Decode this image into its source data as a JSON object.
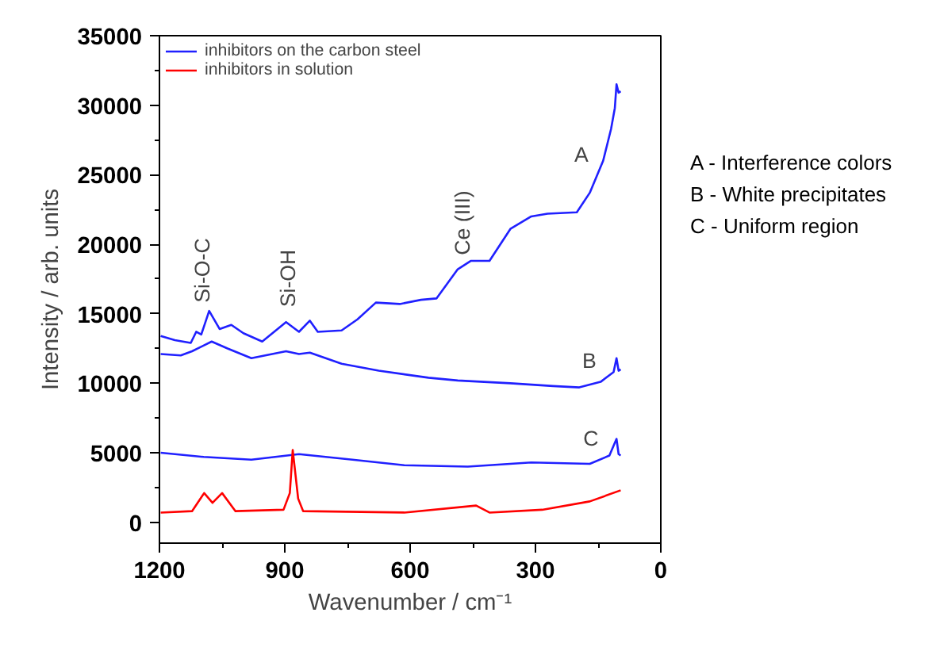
{
  "chart_data": {
    "type": "line",
    "xlabel": "Wavenumber / cm⁻¹",
    "ylabel": "Intensity / arb. units",
    "xlim": [
      1200,
      0
    ],
    "xticks": [
      1200,
      900,
      600,
      300,
      0
    ],
    "ylim": [
      -1500,
      35000
    ],
    "yticks": [
      0,
      5000,
      10000,
      15000,
      20000,
      25000,
      30000,
      35000
    ],
    "grid": false,
    "legend": "top left",
    "marker": "none",
    "line_style": "solid",
    "series": [
      {
        "name": "inhibitors on the carbon steel",
        "color": "#2020ff",
        "x": [
          1197,
          1163,
          1125,
          1112,
          1100,
          1081,
          1056,
          1028,
          999,
          954,
          897,
          866,
          840,
          821,
          764,
          726,
          682,
          625,
          574,
          537,
          486,
          455,
          410,
          360,
          310,
          271,
          201,
          170,
          138,
          119,
          110,
          106,
          101,
          96
        ],
        "values": [
          13400,
          13100,
          12900,
          13700,
          13500,
          15200,
          13900,
          14200,
          13600,
          13000,
          14400,
          13700,
          14500,
          13700,
          13800,
          14600,
          15800,
          15700,
          16000,
          16100,
          18200,
          18800,
          18800,
          21100,
          22000,
          22200,
          22300,
          23700,
          26000,
          28300,
          29800,
          31500,
          30900,
          31000
        ]
      },
      {
        "color": "#2020ff",
        "x": [
          1197,
          1149,
          1122,
          1075,
          1037,
          980,
          897,
          866,
          840,
          764,
          675,
          556,
          486,
          360,
          258,
          195,
          144,
          113,
          106,
          101,
          96
        ],
        "values": [
          12100,
          12000,
          12300,
          13000,
          12500,
          11800,
          12300,
          12100,
          12200,
          11400,
          10900,
          10400,
          10200,
          10000,
          9800,
          9700,
          10100,
          10800,
          11800,
          10900,
          11000
        ]
      },
      {
        "color": "#2020ff",
        "x": [
          1197,
          1094,
          980,
          866,
          738,
          614,
          462,
          310,
          170,
          123,
          106,
          101,
          96
        ],
        "values": [
          5000,
          4700,
          4500,
          4900,
          4500,
          4100,
          4000,
          4300,
          4200,
          4800,
          6000,
          4900,
          4800
        ]
      },
      {
        "name": "inhibitors in solution",
        "color": "#ff0000",
        "x": [
          1197,
          1122,
          1093,
          1073,
          1050,
          1018,
          903,
          888,
          881,
          868,
          856,
          614,
          442,
          410,
          284,
          170,
          96
        ],
        "values": [
          700,
          800,
          2100,
          1400,
          2100,
          800,
          900,
          2100,
          5200,
          1700,
          800,
          700,
          1200,
          700,
          900,
          1500,
          2300
        ]
      }
    ],
    "annotations": [
      "A",
      "B",
      "C",
      "Si-O-C",
      "Si-OH",
      "Ce (III)",
      "A - Interference colors",
      "B - White precipitates",
      "C - Uniform region"
    ]
  }
}
